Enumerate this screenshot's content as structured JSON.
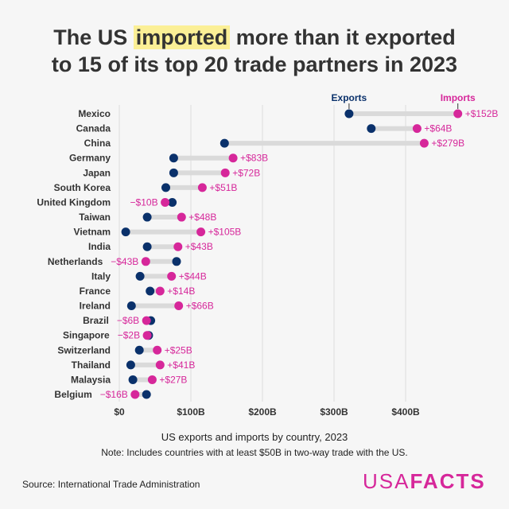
{
  "title": {
    "line1_pre": "The US ",
    "highlight": "imported",
    "line1_post": " more than it exported",
    "line2": "to 15 of its top 20 trade partners in 2023"
  },
  "chart_data": {
    "type": "dumbbell",
    "categories": [
      "Mexico",
      "Canada",
      "China",
      "Germany",
      "Japan",
      "South Korea",
      "United Kingdom",
      "Taiwan",
      "Vietnam",
      "India",
      "Netherlands",
      "Italy",
      "France",
      "Ireland",
      "Brazil",
      "Singapore",
      "Switzerland",
      "Thailand",
      "Malaysia",
      "Belgium"
    ],
    "series": [
      {
        "name": "Exports",
        "color": "#0a316b",
        "values": [
          321,
          352,
          147,
          76,
          76,
          65,
          74,
          39,
          9,
          39,
          80,
          29,
          43,
          17,
          44,
          41,
          28,
          16,
          19,
          38
        ]
      },
      {
        "name": "Imports",
        "color": "#d6279a",
        "values": [
          473,
          416,
          426,
          159,
          148,
          116,
          64,
          87,
          114,
          82,
          37,
          73,
          57,
          83,
          38,
          39,
          53,
          57,
          46,
          22
        ]
      }
    ],
    "data_labels": [
      "+$152B",
      "+$64B",
      "+$279B",
      "+$83B",
      "+$72B",
      "+$51B",
      "−$10B",
      "+$48B",
      "+$105B",
      "+$43B",
      "−$43B",
      "+$44B",
      "+$14B",
      "+$66B",
      "−$6B",
      "−$2B",
      "+$25B",
      "+$41B",
      "+$27B",
      "−$16B"
    ],
    "x_ticks": [
      0,
      100,
      200,
      300,
      400
    ],
    "x_tick_labels": [
      "$0",
      "$100B",
      "$200B",
      "$300B",
      "$400B"
    ],
    "xlim": [
      -5,
      520
    ],
    "xlabel": "US exports and imports by country, 2023",
    "grid": true,
    "legend": "top-right, labels above first row"
  },
  "note": "Note: Includes countries with at least $50B in two-way trade with the US.",
  "source": "Source: International Trade Administration",
  "logo": {
    "part1": "USA",
    "part2": "FACTS"
  }
}
